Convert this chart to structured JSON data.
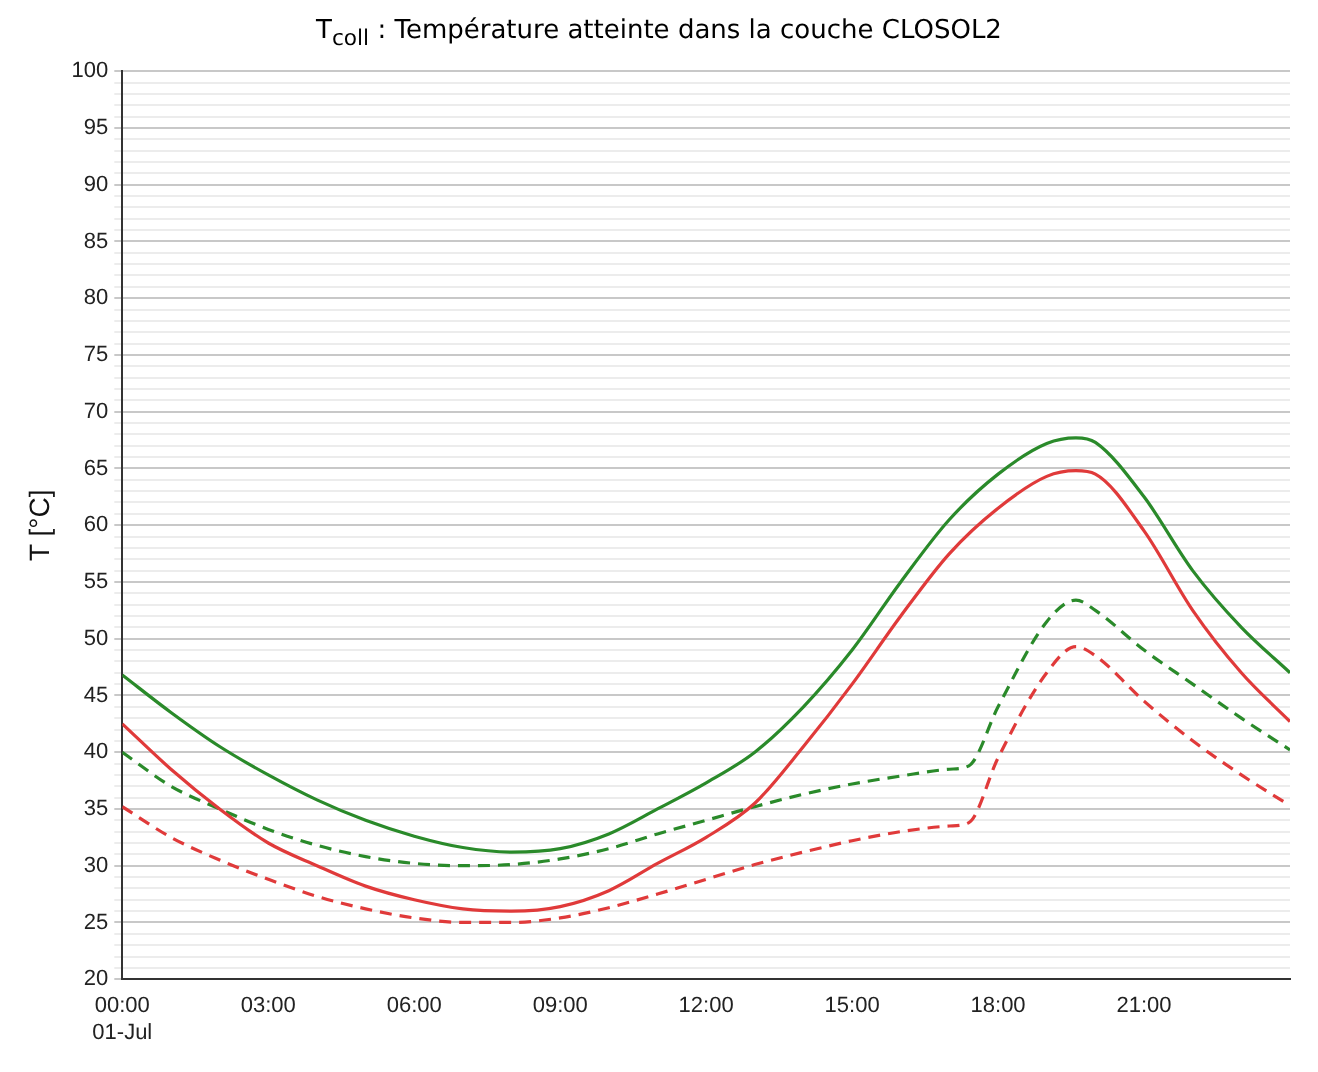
{
  "chart_data": {
    "type": "line",
    "title": "T$_{coll}$ : Température atteinte dans la couche CLOSOL2",
    "ylabel": "T [°C]",
    "grid": "y",
    "marker": "none",
    "xlim": [
      0,
      24
    ],
    "xticks": [
      {
        "value": 0,
        "label": "00:00\n01-Jul"
      },
      {
        "value": 3,
        "label": "03:00"
      },
      {
        "value": 6,
        "label": "06:00"
      },
      {
        "value": 9,
        "label": "09:00"
      },
      {
        "value": 12,
        "label": "12:00"
      },
      {
        "value": 15,
        "label": "15:00"
      },
      {
        "value": 18,
        "label": "18:00"
      },
      {
        "value": 21,
        "label": "21:00"
      }
    ],
    "ylim": [
      20,
      100
    ],
    "yticks": [
      20,
      {
        "value": 21,
        "label": null
      },
      {
        "value": 22,
        "label": null
      },
      {
        "value": 23,
        "label": null
      },
      {
        "value": 24,
        "label": null
      },
      25,
      {
        "value": 26,
        "label": null
      },
      {
        "value": 27,
        "label": null
      },
      {
        "value": 28,
        "label": null
      },
      {
        "value": 29,
        "label": null
      },
      30,
      {
        "value": 31,
        "label": null
      },
      {
        "value": 32,
        "label": null
      },
      {
        "value": 33,
        "label": null
      },
      {
        "value": 34,
        "label": null
      },
      35,
      {
        "value": 36,
        "label": null
      },
      {
        "value": 37,
        "label": null
      },
      {
        "value": 38,
        "label": null
      },
      {
        "value": 39,
        "label": null
      },
      40,
      {
        "value": 41,
        "label": null
      },
      {
        "value": 42,
        "label": null
      },
      {
        "value": 43,
        "label": null
      },
      {
        "value": 44,
        "label": null
      },
      45,
      {
        "value": 46,
        "label": null
      },
      {
        "value": 47,
        "label": null
      },
      {
        "value": 48,
        "label": null
      },
      {
        "value": 49,
        "label": null
      },
      50,
      {
        "value": 51,
        "label": null
      },
      {
        "value": 52,
        "label": null
      },
      {
        "value": 53,
        "label": null
      },
      {
        "value": 54,
        "label": null
      },
      55,
      {
        "value": 56,
        "label": null
      },
      {
        "value": 57,
        "label": null
      },
      {
        "value": 58,
        "label": null
      },
      {
        "value": 59,
        "label": null
      },
      60,
      {
        "value": 61,
        "label": null
      },
      {
        "value": 62,
        "label": null
      },
      {
        "value": 63,
        "label": null
      },
      {
        "value": 64,
        "label": null
      },
      65,
      {
        "value": 66,
        "label": null
      },
      {
        "value": 67,
        "label": null
      },
      {
        "value": 68,
        "label": null
      },
      {
        "value": 69,
        "label": null
      },
      70,
      {
        "value": 71,
        "label": null
      },
      {
        "value": 72,
        "label": null
      },
      {
        "value": 73,
        "label": null
      },
      {
        "value": 74,
        "label": null
      },
      75,
      {
        "value": 76,
        "label": null
      },
      {
        "value": 77,
        "label": null
      },
      {
        "value": 78,
        "label": null
      },
      {
        "value": 79,
        "label": null
      },
      80,
      {
        "value": 81,
        "label": null
      },
      {
        "value": 82,
        "label": null
      },
      {
        "value": 83,
        "label": null
      },
      {
        "value": 84,
        "label": null
      },
      85,
      {
        "value": 86,
        "label": null
      },
      {
        "value": 87,
        "label": null
      },
      {
        "value": 88,
        "label": null
      },
      {
        "value": 89,
        "label": null
      },
      90,
      {
        "value": 91,
        "label": null
      },
      {
        "value": 92,
        "label": null
      },
      {
        "value": 93,
        "label": null
      },
      {
        "value": 94,
        "label": null
      },
      95,
      {
        "value": 96,
        "label": null
      },
      {
        "value": 97,
        "label": null
      },
      {
        "value": 98,
        "label": null
      },
      {
        "value": 99,
        "label": null
      },
      100
    ],
    "series": [
      {
        "color": "#2a8a2a",
        "line_style": "solid",
        "x": [
          0,
          1,
          2,
          3,
          4,
          5,
          6,
          7,
          8,
          9,
          10,
          11,
          12,
          13,
          14,
          15,
          16,
          17,
          18,
          19,
          19.6,
          20,
          21,
          22,
          23,
          24
        ],
        "values": [
          46.8,
          43.5,
          40.5,
          38,
          35.8,
          34,
          32.6,
          31.6,
          31.2,
          31.5,
          32.8,
          35,
          37.3,
          40,
          44,
          49,
          55,
          60.5,
          64.5,
          67.2,
          67.7,
          67.3,
          62.5,
          56,
          51,
          47
        ]
      },
      {
        "color": "#e03a3a",
        "line_style": "solid",
        "x": [
          0,
          1,
          2,
          3,
          4,
          5,
          6,
          7,
          8,
          9,
          10,
          11,
          12,
          13,
          14,
          15,
          16,
          17,
          18,
          19,
          19.6,
          20,
          21,
          22,
          23,
          24
        ],
        "values": [
          42.5,
          38.5,
          35,
          32,
          30,
          28.2,
          27,
          26.2,
          26,
          26.4,
          27.8,
          30.2,
          32.5,
          35.5,
          40.5,
          46,
          52,
          57.5,
          61.5,
          64.3,
          64.8,
          64.5,
          59.5,
          52.5,
          47,
          42.7
        ]
      },
      {
        "color": "#2a8a2a",
        "line_style": "dashed",
        "x": [
          0,
          1,
          2,
          3,
          4,
          5,
          6,
          7,
          8,
          9,
          10,
          11,
          12,
          13,
          14,
          15,
          16,
          17,
          17.4,
          18,
          19,
          19.6,
          20,
          21,
          22,
          23,
          24
        ],
        "values": [
          40,
          37,
          35,
          33.2,
          31.8,
          30.8,
          30.2,
          30,
          30.1,
          30.6,
          31.5,
          32.8,
          34,
          35.2,
          36.3,
          37.2,
          37.9,
          38.5,
          38.8,
          44,
          51.5,
          53.4,
          52.5,
          49,
          46,
          43,
          40.2
        ]
      },
      {
        "color": "#e03a3a",
        "line_style": "dashed",
        "x": [
          0,
          1,
          2,
          3,
          4,
          5,
          6,
          7,
          8,
          9,
          10,
          11,
          12,
          13,
          14,
          15,
          16,
          17,
          17.4,
          18,
          19,
          19.6,
          20,
          21,
          22,
          23,
          24
        ],
        "values": [
          35.2,
          32.5,
          30.5,
          28.8,
          27.3,
          26.2,
          25.4,
          25,
          25,
          25.4,
          26.3,
          27.5,
          28.8,
          30.1,
          31.2,
          32.2,
          33,
          33.5,
          33.8,
          39.5,
          47,
          49.3,
          48.5,
          44.5,
          41,
          38,
          35.3
        ]
      }
    ]
  }
}
